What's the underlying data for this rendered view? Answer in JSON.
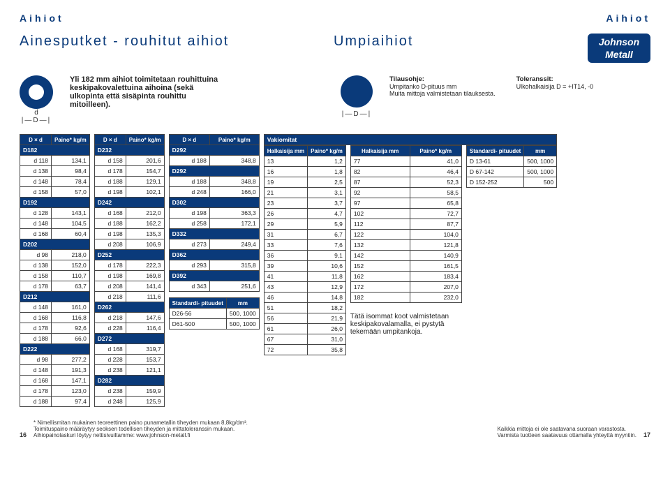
{
  "header": {
    "left": "Aihiot",
    "right": "Aihiot"
  },
  "titles": {
    "left": "Ainesputket - rouhitut aihiot",
    "mid": "Umpiaihiot"
  },
  "logo": {
    "l1": "Johnson",
    "l2": "Metall"
  },
  "intro": "Yli 182 mm aihiot toimitetaan rouhittuina keskipakovalettuina aihoina (sekä ulkopinta että sisäpinta rouhittu mitoilleen).",
  "d_small": "d",
  "d_big": "D",
  "tilaus": {
    "h": "Tilausohje:",
    "l1": "Umpitanko D-pituus mm",
    "l2": "Muita mittoja valmistetaan tilauksesta."
  },
  "toler": {
    "h": "Toleranssit:",
    "l1": "Ulkohalkaisija D = +IT14, -0"
  },
  "hdr_Dd": "D × d",
  "hdr_p": "Paino*\nkg/m",
  "t1": {
    "groups": [
      {
        "g": "D182",
        "rows": [
          [
            "d 118",
            "134,1"
          ],
          [
            "d 138",
            "98,4"
          ],
          [
            "d 148",
            "78,4"
          ],
          [
            "d 158",
            "57,0"
          ]
        ]
      },
      {
        "g": "D192",
        "rows": [
          [
            "d 128",
            "143,1"
          ],
          [
            "d 148",
            "104,5"
          ],
          [
            "d 168",
            "60,4"
          ]
        ]
      },
      {
        "g": "D202",
        "rows": [
          [
            "d 98",
            "218,0"
          ],
          [
            "d 138",
            "152,0"
          ],
          [
            "d 158",
            "110,7"
          ],
          [
            "d 178",
            "63,7"
          ]
        ]
      },
      {
        "g": "D212",
        "rows": [
          [
            "d 148",
            "161,0"
          ],
          [
            "d 168",
            "116,8"
          ],
          [
            "d 178",
            "92,6"
          ],
          [
            "d 188",
            "66,0"
          ]
        ]
      },
      {
        "g": "D222",
        "rows": [
          [
            "d 98",
            "277,2"
          ],
          [
            "d 148",
            "191,3"
          ],
          [
            "d 168",
            "147,1"
          ],
          [
            "d 178",
            "123,0"
          ],
          [
            "d 188",
            "97,4"
          ]
        ]
      }
    ]
  },
  "t2": {
    "groups": [
      {
        "g": "D232",
        "rows": [
          [
            "d 158",
            "201,6"
          ],
          [
            "d 178",
            "154,7"
          ],
          [
            "d 188",
            "129,1"
          ],
          [
            "d 198",
            "102,1"
          ]
        ]
      },
      {
        "g": "D242",
        "rows": [
          [
            "d 168",
            "212,0"
          ],
          [
            "d 188",
            "162,2"
          ],
          [
            "d 198",
            "135,3"
          ],
          [
            "d 208",
            "106,9"
          ]
        ]
      },
      {
        "g": "D252",
        "rows": [
          [
            "d 178",
            "222,3"
          ],
          [
            "d 198",
            "169,8"
          ],
          [
            "d 208",
            "141,4"
          ],
          [
            "d 218",
            "111,6"
          ]
        ]
      },
      {
        "g": "D262",
        "rows": [
          [
            "d 218",
            "147,6"
          ],
          [
            "d 228",
            "116,4"
          ]
        ]
      },
      {
        "g": "D272",
        "rows": [
          [
            "d 168",
            "319,7"
          ],
          [
            "d 228",
            "153,7"
          ],
          [
            "d 238",
            "121,1"
          ]
        ]
      },
      {
        "g": "D282",
        "rows": [
          [
            "d 238",
            "159,9"
          ],
          [
            "d 248",
            "125,9"
          ]
        ]
      }
    ]
  },
  "t3": {
    "groups": [
      {
        "g": "D292",
        "rows": [
          [
            "d 188",
            "348,8"
          ]
        ]
      },
      {
        "g": "D292",
        "rows": [
          [
            "d 188",
            "348,8"
          ],
          [
            "d 248",
            "166,0"
          ]
        ]
      },
      {
        "g": "D302",
        "rows": [
          [
            "d 198",
            "363,3"
          ],
          [
            "d 258",
            "172,1"
          ]
        ]
      },
      {
        "g": "D332",
        "rows": [
          [
            "d 273",
            "249,4"
          ]
        ]
      },
      {
        "g": "D362",
        "rows": [
          [
            "d 293",
            "315,8"
          ]
        ]
      },
      {
        "g": "D392",
        "rows": [
          [
            "d 343",
            "251,6"
          ]
        ]
      }
    ]
  },
  "std3": {
    "h1": "Standardi-\npituudet",
    "h2": "mm",
    "rows": [
      [
        "D26-56",
        "500, 1000"
      ],
      [
        "D61-500",
        "500, 1000"
      ]
    ]
  },
  "vak": {
    "title": "Vakiomitat",
    "h1": "Halkaisija\nmm",
    "h2": "Paino*\nkg/m",
    "colA": [
      [
        "13",
        "1,2"
      ],
      [
        "16",
        "1,8"
      ],
      [
        "19",
        "2,5"
      ],
      [
        "21",
        "3,1"
      ],
      [
        "23",
        "3,7"
      ],
      [
        "26",
        "4,7"
      ],
      [
        "29",
        "5,9"
      ],
      [
        "31",
        "6,7"
      ],
      [
        "33",
        "7,6"
      ],
      [
        "36",
        "9,1"
      ],
      [
        "39",
        "10,6"
      ],
      [
        "41",
        "11,8"
      ],
      [
        "43",
        "12,9"
      ],
      [
        "46",
        "14,8"
      ],
      [
        "51",
        "18,2"
      ],
      [
        "56",
        "21,9"
      ],
      [
        "61",
        "26,0"
      ],
      [
        "67",
        "31,0"
      ],
      [
        "72",
        "35,8"
      ]
    ],
    "colB": [
      [
        "77",
        "41,0"
      ],
      [
        "82",
        "46,4"
      ],
      [
        "87",
        "52,3"
      ],
      [
        "92",
        "58,5"
      ],
      [
        "97",
        "65,8"
      ],
      [
        "102",
        "72,7"
      ],
      [
        "112",
        "87,7"
      ],
      [
        "122",
        "104,0"
      ],
      [
        "132",
        "121,8"
      ],
      [
        "142",
        "140,9"
      ],
      [
        "152",
        "161,5"
      ],
      [
        "162",
        "183,4"
      ],
      [
        "172",
        "207,0"
      ],
      [
        "182",
        "232,0"
      ]
    ]
  },
  "std5": {
    "h1": "Standardi-\npituudet",
    "h2": "mm",
    "rows": [
      [
        "D 13-61",
        "500, 1000"
      ],
      [
        "D 67-142",
        "500, 1000"
      ],
      [
        "D 152-252",
        "500"
      ]
    ]
  },
  "sidenote": "Tätä isommat koot valmistetaan keskipakovalamalla, ei pystytä tekemään umpitankoja.",
  "foot": {
    "l1": "* Nimellismitan mukainen teoreettinen paino punametallin tiheyden mukaan 8,8kg/dm³.",
    "l2": "Toimituspaino määräytyy seoksen todellisen tiheyden ja mittatoleranssin mukaan.",
    "l3": "Aihiopainolaskuri löytyy nettisivuiltamme: www.johnson-metall.fi",
    "r1": "Kaikkia mittoja ei ole saatavana suoraan varastosta.",
    "r2": "Varmista tuotteen saatavuus ottamalla yhteyttä myyntiin.",
    "pl": "16",
    "pr": "17"
  }
}
